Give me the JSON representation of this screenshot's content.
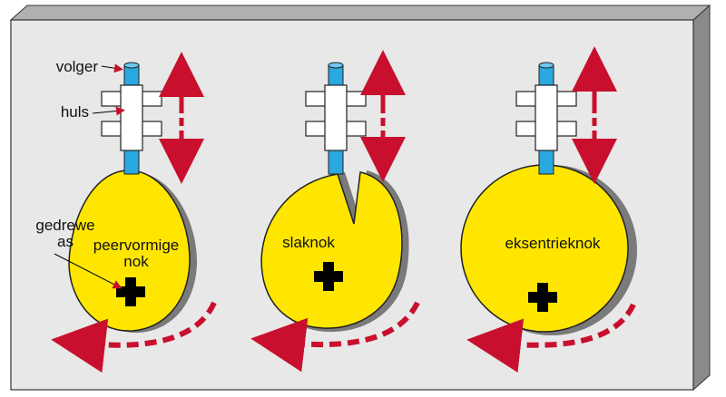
{
  "labels": {
    "follower": "volger",
    "sleeve": "huls",
    "driven_shaft_line1": "gedrewe",
    "driven_shaft_line2": "as"
  },
  "cams": [
    {
      "name_line1": "peervormige",
      "name_line2": "nok"
    },
    {
      "name_line1": "slaknok",
      "name_line2": ""
    },
    {
      "name_line1": "eksentrieknok",
      "name_line2": ""
    }
  ],
  "colors": {
    "background": "#e8e8e8",
    "panel_side": "#8a8a8a",
    "cam_fill": "#ffe600",
    "cam_shadow": "#7a7a7a",
    "follower_rod": "#2aa8e0",
    "sleeve": "#ffffff",
    "arrow": "#c8102e",
    "shaft": "#000000"
  },
  "icons": [
    "follower-rod",
    "sleeve-bracket",
    "motion-arrow",
    "rotation-arrow",
    "shaft-cross"
  ]
}
